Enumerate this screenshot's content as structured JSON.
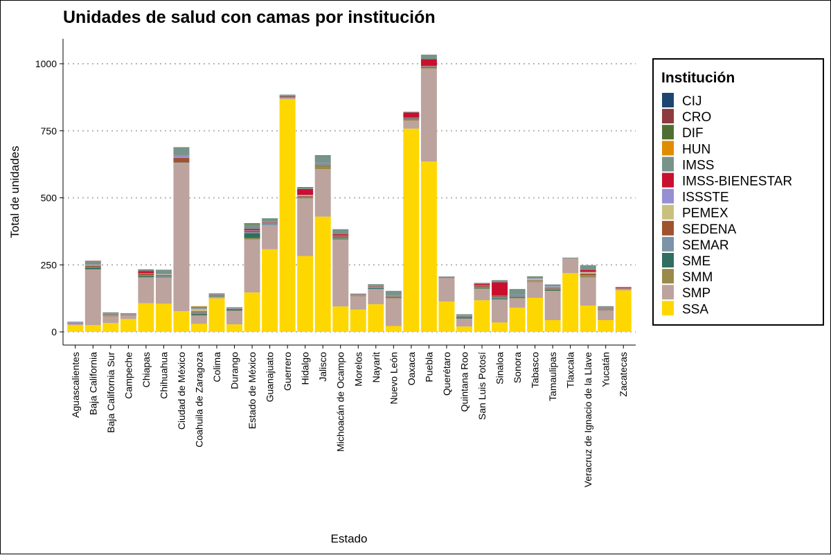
{
  "chart_data": {
    "type": "bar",
    "stacked": true,
    "title": "Unidades de salud con camas por institución",
    "xlabel": "Estado",
    "ylabel": "Total de unidades",
    "ylim": [
      0,
      1090
    ],
    "yticks": [
      0,
      250,
      500,
      750,
      1000
    ],
    "grid": "horizontal dotted",
    "legend": {
      "title": "Institución",
      "position": "right"
    },
    "categories": [
      "Aguascalientes",
      "Baja California",
      "Baja California Sur",
      "Campeche",
      "Chiapas",
      "Chihuahua",
      "Ciudad de México",
      "Coahuila de Zaragoza",
      "Colima",
      "Durango",
      "Estado de México",
      "Guanajuato",
      "Guerrero",
      "Hidalgo",
      "Jalisco",
      "Michoacán de Ocampo",
      "Morelos",
      "Nayarit",
      "Nuevo León",
      "Oaxaca",
      "Puebla",
      "Querétaro",
      "Quintana Roo",
      "San Luis Potosí",
      "Sinaloa",
      "Sonora",
      "Tabasco",
      "Tamaulipas",
      "Tlaxcala",
      "Veracruz de Ignacio de la Llave",
      "Yucatán",
      "Zacatecas"
    ],
    "series": [
      {
        "name": "SSA",
        "color": "#FFD700",
        "values": [
          25,
          25,
          33,
          48,
          107,
          105,
          77,
          30,
          125,
          28,
          147,
          308,
          868,
          283,
          430,
          95,
          83,
          103,
          22,
          758,
          635,
          113,
          20,
          118,
          35,
          90,
          127,
          44,
          219,
          98,
          44,
          155
        ]
      },
      {
        "name": "SMP",
        "color": "#BCA39D",
        "values": [
          6,
          207,
          25,
          15,
          95,
          97,
          553,
          30,
          5,
          50,
          198,
          90,
          5,
          215,
          177,
          248,
          50,
          57,
          103,
          30,
          347,
          88,
          30,
          42,
          85,
          35,
          58,
          108,
          55,
          105,
          35,
          5
        ]
      },
      {
        "name": "SMM",
        "color": "#9A8A4A",
        "values": [
          0,
          2,
          2,
          0,
          3,
          3,
          0,
          3,
          2,
          2,
          5,
          0,
          2,
          2,
          12,
          5,
          2,
          0,
          2,
          5,
          4,
          0,
          0,
          2,
          2,
          2,
          3,
          2,
          0,
          5,
          2,
          0
        ]
      },
      {
        "name": "SME",
        "color": "#2F6E60",
        "values": [
          0,
          6,
          0,
          0,
          5,
          2,
          0,
          5,
          2,
          3,
          18,
          0,
          2,
          2,
          2,
          2,
          0,
          3,
          3,
          2,
          2,
          0,
          5,
          3,
          4,
          4,
          0,
          4,
          0,
          0,
          0,
          0
        ]
      },
      {
        "name": "SEMAR",
        "color": "#7C93A8",
        "values": [
          2,
          2,
          5,
          0,
          2,
          2,
          2,
          5,
          2,
          0,
          4,
          8,
          0,
          2,
          5,
          2,
          2,
          4,
          2,
          0,
          0,
          0,
          3,
          3,
          3,
          3,
          3,
          4,
          0,
          3,
          5,
          0
        ]
      },
      {
        "name": "SEDENA",
        "color": "#A0522D",
        "values": [
          1,
          5,
          2,
          2,
          5,
          3,
          17,
          4,
          2,
          3,
          5,
          3,
          3,
          3,
          2,
          5,
          2,
          3,
          2,
          2,
          2,
          2,
          2,
          4,
          4,
          2,
          2,
          4,
          0,
          6,
          2,
          2
        ]
      },
      {
        "name": "PEMEX",
        "color": "#C9C07E",
        "values": [
          0,
          2,
          0,
          0,
          0,
          2,
          0,
          8,
          0,
          0,
          0,
          0,
          0,
          2,
          0,
          0,
          0,
          0,
          0,
          0,
          0,
          0,
          0,
          0,
          0,
          0,
          5,
          2,
          0,
          5,
          0,
          0
        ]
      },
      {
        "name": "ISSSTE",
        "color": "#9590D2",
        "values": [
          2,
          2,
          2,
          2,
          2,
          2,
          10,
          2,
          2,
          2,
          2,
          2,
          2,
          2,
          2,
          2,
          2,
          2,
          2,
          2,
          2,
          2,
          2,
          2,
          2,
          2,
          2,
          2,
          0,
          2,
          2,
          2
        ]
      },
      {
        "name": "IMSS-BIENESTAR",
        "color": "#C8102E",
        "values": [
          0,
          0,
          0,
          0,
          8,
          0,
          0,
          0,
          0,
          0,
          5,
          0,
          0,
          22,
          0,
          5,
          0,
          0,
          0,
          19,
          25,
          0,
          0,
          5,
          50,
          0,
          0,
          0,
          0,
          7,
          0,
          3
        ]
      },
      {
        "name": "IMSS",
        "color": "#77938A",
        "values": [
          2,
          12,
          4,
          3,
          4,
          16,
          30,
          7,
          4,
          4,
          17,
          13,
          3,
          5,
          27,
          19,
          2,
          6,
          17,
          3,
          17,
          2,
          4,
          4,
          8,
          22,
          5,
          7,
          3,
          18,
          6,
          0
        ]
      },
      {
        "name": "HUN",
        "color": "#E08C00",
        "values": [
          0,
          0,
          0,
          0,
          0,
          0,
          0,
          2,
          0,
          0,
          0,
          0,
          0,
          0,
          0,
          0,
          0,
          0,
          0,
          0,
          0,
          0,
          0,
          0,
          0,
          0,
          0,
          0,
          0,
          0,
          0,
          0
        ]
      },
      {
        "name": "DIF",
        "color": "#4F6F32",
        "values": [
          0,
          0,
          0,
          0,
          0,
          0,
          0,
          0,
          0,
          0,
          2,
          0,
          0,
          0,
          2,
          0,
          0,
          0,
          0,
          0,
          0,
          0,
          0,
          0,
          0,
          0,
          2,
          0,
          0,
          0,
          0,
          0
        ]
      },
      {
        "name": "CRO",
        "color": "#8E3A3E",
        "values": [
          0,
          2,
          0,
          0,
          2,
          0,
          0,
          0,
          0,
          0,
          2,
          0,
          0,
          2,
          0,
          0,
          0,
          0,
          0,
          0,
          0,
          0,
          0,
          0,
          0,
          0,
          0,
          0,
          0,
          0,
          0,
          0
        ]
      },
      {
        "name": "CIJ",
        "color": "#1C4670",
        "values": [
          0,
          0,
          0,
          0,
          0,
          0,
          0,
          0,
          0,
          0,
          0,
          0,
          0,
          0,
          0,
          0,
          0,
          0,
          0,
          0,
          0,
          0,
          0,
          0,
          0,
          0,
          0,
          0,
          0,
          0,
          0,
          0
        ]
      }
    ],
    "legend_order": [
      "CIJ",
      "CRO",
      "DIF",
      "HUN",
      "IMSS",
      "IMSS-BIENESTAR",
      "ISSSTE",
      "PEMEX",
      "SEDENA",
      "SEMAR",
      "SME",
      "SMM",
      "SMP",
      "SSA"
    ]
  }
}
